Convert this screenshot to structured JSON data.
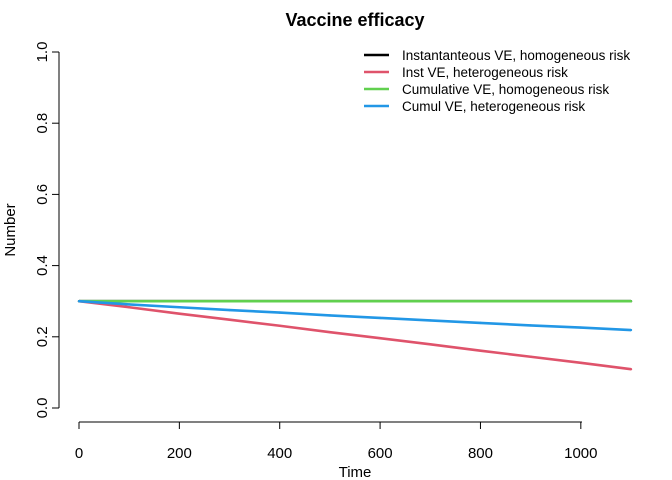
{
  "chart_data": {
    "type": "line",
    "title": "Vaccine efficacy",
    "xlabel": "Time",
    "ylabel": "Number",
    "xlim": [
      0,
      1100
    ],
    "ylim": [
      0,
      1
    ],
    "x_ticks": [
      "0",
      "200",
      "400",
      "600",
      "800",
      "1000"
    ],
    "y_ticks": [
      "0.0",
      "0.2",
      "0.4",
      "0.6",
      "0.8",
      "1.0"
    ],
    "grid": false,
    "legend_position": "top-right",
    "series": [
      {
        "name": "Instantanteous VE, homogeneous risk",
        "color": "#000000",
        "x": [
          0,
          100,
          200,
          300,
          400,
          500,
          600,
          700,
          800,
          900,
          1000,
          1100
        ],
        "y": [
          0.3,
          0.3,
          0.3,
          0.3,
          0.3,
          0.3,
          0.3,
          0.3,
          0.3,
          0.3,
          0.3,
          0.3
        ]
      },
      {
        "name": "Inst VE, heterogeneous risk",
        "color": "#DF536B",
        "x": [
          0,
          100,
          200,
          300,
          400,
          500,
          600,
          700,
          800,
          900,
          1000,
          1100
        ],
        "y": [
          0.3,
          0.283,
          0.265,
          0.248,
          0.231,
          0.213,
          0.196,
          0.179,
          0.161,
          0.144,
          0.127,
          0.109
        ]
      },
      {
        "name": "Cumulative VE, homogeneous risk",
        "color": "#61D04F",
        "x": [
          0,
          100,
          200,
          300,
          400,
          500,
          600,
          700,
          800,
          900,
          1000,
          1100
        ],
        "y": [
          0.3,
          0.3,
          0.3,
          0.3,
          0.3,
          0.3,
          0.3,
          0.3,
          0.3,
          0.3,
          0.3,
          0.3
        ]
      },
      {
        "name": "Cumul VE, heterogeneous risk",
        "color": "#2297E6",
        "x": [
          0,
          100,
          200,
          300,
          400,
          500,
          600,
          700,
          800,
          900,
          1000,
          1100
        ],
        "y": [
          0.3,
          0.291,
          0.283,
          0.275,
          0.268,
          0.26,
          0.253,
          0.246,
          0.239,
          0.232,
          0.226,
          0.219
        ]
      }
    ]
  }
}
